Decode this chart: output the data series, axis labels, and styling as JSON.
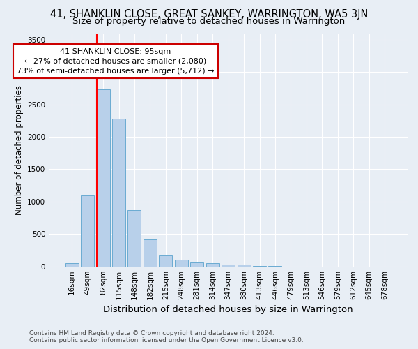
{
  "title": "41, SHANKLIN CLOSE, GREAT SANKEY, WARRINGTON, WA5 3JN",
  "subtitle": "Size of property relative to detached houses in Warrington",
  "xlabel": "Distribution of detached houses by size in Warrington",
  "ylabel": "Number of detached properties",
  "footer_line1": "Contains HM Land Registry data © Crown copyright and database right 2024.",
  "footer_line2": "Contains public sector information licensed under the Open Government Licence v3.0.",
  "categories": [
    "16sqm",
    "49sqm",
    "82sqm",
    "115sqm",
    "148sqm",
    "182sqm",
    "215sqm",
    "248sqm",
    "281sqm",
    "314sqm",
    "347sqm",
    "380sqm",
    "413sqm",
    "446sqm",
    "479sqm",
    "513sqm",
    "546sqm",
    "579sqm",
    "612sqm",
    "645sqm",
    "678sqm"
  ],
  "values": [
    55,
    1100,
    2730,
    2280,
    870,
    420,
    170,
    100,
    65,
    55,
    30,
    25,
    10,
    5,
    0,
    0,
    0,
    0,
    0,
    0,
    0
  ],
  "bar_color": "#b8d0ea",
  "bar_edge_color": "#6aabd2",
  "red_line_x": 2,
  "annotation_line1": "41 SHANKLIN CLOSE: 95sqm",
  "annotation_line2": "← 27% of detached houses are smaller (2,080)",
  "annotation_line3": "73% of semi-detached houses are larger (5,712) →",
  "annotation_box_color": "#ffffff",
  "annotation_box_edge_color": "#cc0000",
  "ylim": [
    0,
    3600
  ],
  "yticks": [
    0,
    500,
    1000,
    1500,
    2000,
    2500,
    3000,
    3500
  ],
  "background_color": "#e8eef5",
  "grid_color": "#ffffff",
  "title_fontsize": 10.5,
  "subtitle_fontsize": 9.5,
  "ylabel_fontsize": 8.5,
  "xlabel_fontsize": 9.5,
  "tick_fontsize": 7.5,
  "footer_fontsize": 6.5
}
